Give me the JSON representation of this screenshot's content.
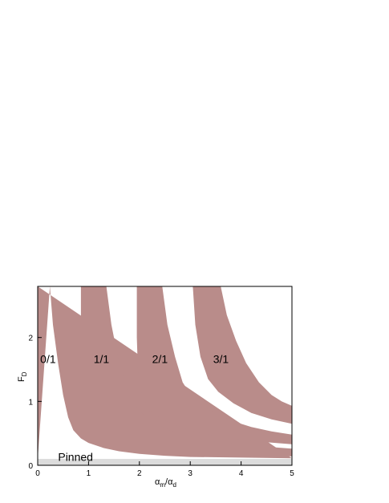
{
  "chart_data": {
    "type": "area",
    "title": "",
    "xlabel": {
      "main": "α",
      "sub1": "m",
      "sep": "/α",
      "sub2": "d"
    },
    "ylabel": {
      "main": "F",
      "sub": "D"
    },
    "xlim": [
      0,
      5
    ],
    "ylim": [
      0,
      2.8
    ],
    "xticks": [
      0,
      1,
      2,
      3,
      4,
      5
    ],
    "yticks": [
      0,
      1,
      2
    ],
    "grid": false,
    "colors": {
      "band": "#b98c8a",
      "pinned": "#dcdcdc",
      "background": "#ffffff",
      "axis": "#000000"
    },
    "pinned": {
      "label": "Pinned",
      "y_max": 0.1,
      "label_at": [
        0.4,
        0.07
      ]
    },
    "bands": [
      {
        "name": "0/1",
        "label_at": [
          0.05,
          1.6
        ],
        "left": [
          [
            0,
            0.1
          ],
          [
            0,
            2.8
          ]
        ],
        "right": [
          [
            0.24,
            2.8
          ],
          [
            0.3,
            2.2
          ],
          [
            0.4,
            1.6
          ],
          [
            0.5,
            1.1
          ],
          [
            0.6,
            0.75
          ],
          [
            0.7,
            0.55
          ],
          [
            0.85,
            0.42
          ],
          [
            1.0,
            0.35
          ],
          [
            1.3,
            0.27
          ],
          [
            1.6,
            0.22
          ],
          [
            2.0,
            0.18
          ],
          [
            2.5,
            0.15
          ],
          [
            3.0,
            0.13
          ],
          [
            4.0,
            0.12
          ],
          [
            5.0,
            0.11
          ]
        ]
      },
      {
        "name": "1/1",
        "label_at": [
          1.1,
          1.6
        ],
        "left": [
          [
            0.85,
            2.8
          ],
          [
            0.85,
            1.8
          ],
          [
            0.82,
            1.2
          ],
          [
            0.8,
            0.75
          ],
          [
            0.85,
            0.55
          ],
          [
            0.95,
            0.45
          ],
          [
            1.15,
            0.35
          ],
          [
            1.4,
            0.28
          ],
          [
            1.8,
            0.22
          ],
          [
            2.3,
            0.18
          ],
          [
            3.0,
            0.16
          ],
          [
            4.0,
            0.15
          ],
          [
            5.0,
            0.14
          ]
        ],
        "right": [
          [
            1.35,
            2.8
          ],
          [
            1.45,
            2.2
          ],
          [
            1.6,
            1.6
          ],
          [
            1.8,
            1.1
          ],
          [
            2.0,
            0.85
          ],
          [
            2.2,
            0.7
          ],
          [
            2.6,
            0.55
          ],
          [
            3.0,
            0.45
          ],
          [
            3.5,
            0.37
          ],
          [
            4.0,
            0.33
          ],
          [
            4.5,
            0.29
          ],
          [
            5.0,
            0.26
          ]
        ]
      },
      {
        "name": "2/1",
        "label_at": [
          2.25,
          1.6
        ],
        "left": [
          [
            1.95,
            2.8
          ],
          [
            1.95,
            2.0
          ],
          [
            1.97,
            1.5
          ],
          [
            2.05,
            1.1
          ],
          [
            2.2,
            0.85
          ],
          [
            2.45,
            0.72
          ],
          [
            2.8,
            0.6
          ],
          [
            3.2,
            0.5
          ],
          [
            3.7,
            0.43
          ],
          [
            4.2,
            0.38
          ],
          [
            5.0,
            0.33
          ]
        ],
        "right": [
          [
            2.45,
            2.8
          ],
          [
            2.55,
            2.2
          ],
          [
            2.7,
            1.7
          ],
          [
            2.85,
            1.3
          ],
          [
            3.05,
            1.05
          ],
          [
            3.4,
            0.85
          ],
          [
            3.8,
            0.7
          ],
          [
            4.2,
            0.6
          ],
          [
            4.6,
            0.53
          ],
          [
            5.0,
            0.48
          ]
        ]
      },
      {
        "name": "3/1",
        "label_at": [
          3.45,
          1.6
        ],
        "left": [
          [
            3.05,
            2.8
          ],
          [
            3.1,
            2.2
          ],
          [
            3.2,
            1.7
          ],
          [
            3.35,
            1.35
          ],
          [
            3.55,
            1.15
          ],
          [
            3.85,
            0.97
          ],
          [
            4.2,
            0.82
          ],
          [
            4.6,
            0.72
          ],
          [
            5.0,
            0.65
          ]
        ],
        "right": [
          [
            3.6,
            2.8
          ],
          [
            3.72,
            2.35
          ],
          [
            3.9,
            1.95
          ],
          [
            4.1,
            1.6
          ],
          [
            4.35,
            1.3
          ],
          [
            4.6,
            1.1
          ],
          [
            4.8,
            1.0
          ],
          [
            5.0,
            0.93
          ]
        ]
      }
    ]
  }
}
